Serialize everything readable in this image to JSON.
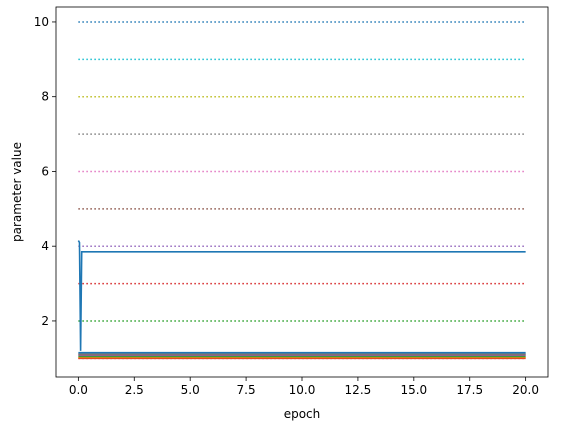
{
  "chart_data": {
    "type": "line",
    "title": "",
    "xlabel": "epoch",
    "ylabel": "parameter value",
    "xlim": [
      -1.0,
      21.0
    ],
    "ylim": [
      0.5,
      10.4
    ],
    "xticks": [
      0.0,
      2.5,
      5.0,
      7.5,
      10.0,
      12.5,
      15.0,
      17.5,
      20.0
    ],
    "xtick_labels": [
      "0.0",
      "2.5",
      "5.0",
      "7.5",
      "10.0",
      "12.5",
      "15.0",
      "17.5",
      "20.0"
    ],
    "yticks": [
      2,
      4,
      6,
      8,
      10
    ],
    "ytick_labels": [
      "2",
      "4",
      "6",
      "8",
      "10"
    ],
    "grid": false,
    "legend": "none",
    "reference_lines": [
      {
        "y": 1,
        "color": "#d62728",
        "style": "dotted"
      },
      {
        "y": 2,
        "color": "#2ca02c",
        "style": "dotted"
      },
      {
        "y": 3,
        "color": "#d62728",
        "style": "dotted"
      },
      {
        "y": 4,
        "color": "#9467bd",
        "style": "dotted"
      },
      {
        "y": 5,
        "color": "#8c564b",
        "style": "dotted"
      },
      {
        "y": 6,
        "color": "#e377c2",
        "style": "dotted"
      },
      {
        "y": 7,
        "color": "#7f7f7f",
        "style": "dotted"
      },
      {
        "y": 8,
        "color": "#bcbd22",
        "style": "dotted"
      },
      {
        "y": 9,
        "color": "#17becf",
        "style": "dotted"
      },
      {
        "y": 10,
        "color": "#1f77b4",
        "style": "dotted"
      }
    ],
    "series": [
      {
        "color": "#1f77b4",
        "x": [
          0,
          0.05,
          0.1,
          0.15,
          20
        ],
        "y": [
          4.15,
          4.1,
          1.2,
          3.85,
          3.85
        ]
      },
      {
        "color": "#d62728",
        "x": [
          0,
          20
        ],
        "y": [
          1.0,
          1.0
        ]
      },
      {
        "color": "#ff7f0e",
        "x": [
          0,
          20
        ],
        "y": [
          1.02,
          1.02
        ]
      },
      {
        "color": "#2ca02c",
        "x": [
          0,
          20
        ],
        "y": [
          1.05,
          1.05
        ]
      },
      {
        "color": "#9467bd",
        "x": [
          0,
          20
        ],
        "y": [
          1.08,
          1.08
        ]
      },
      {
        "color": "#8c564b",
        "x": [
          0,
          20
        ],
        "y": [
          1.1,
          1.1
        ]
      },
      {
        "color": "#7f7f7f",
        "x": [
          0,
          20
        ],
        "y": [
          1.12,
          1.12
        ]
      },
      {
        "color": "#1f77b4",
        "x": [
          0,
          20
        ],
        "y": [
          1.15,
          1.15
        ]
      }
    ]
  }
}
